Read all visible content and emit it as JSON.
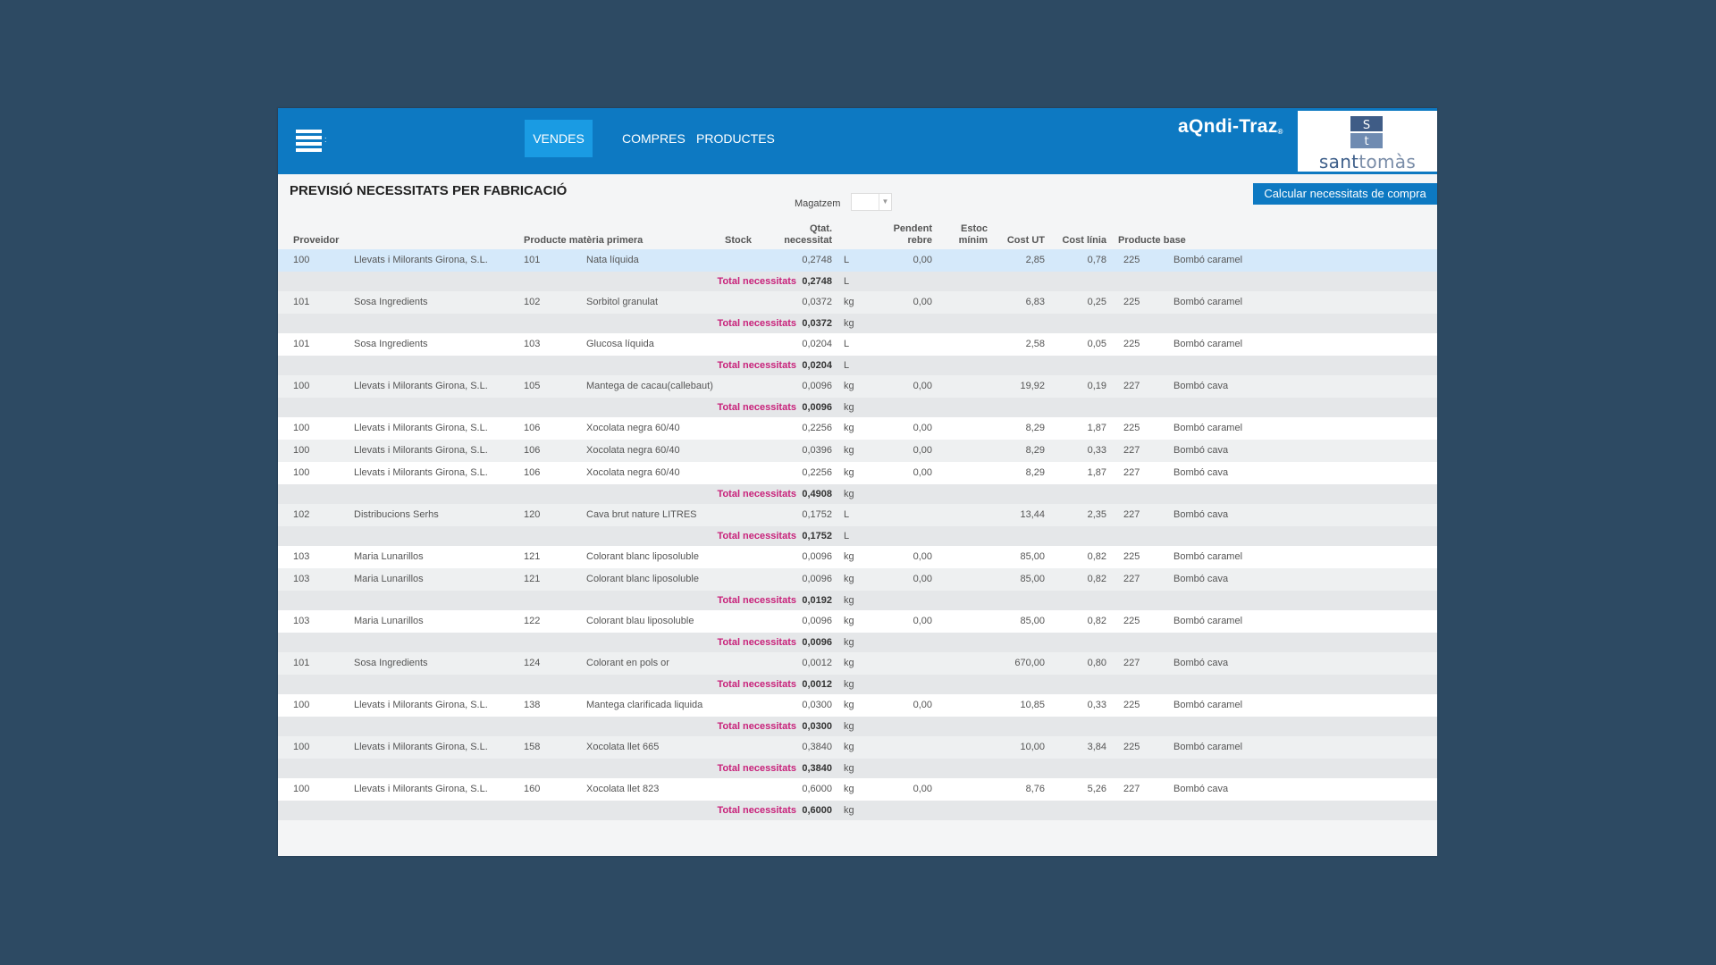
{
  "menu": {
    "icon": "menu-icon"
  },
  "nav": {
    "tabs": [
      {
        "label": "VENDES",
        "active": true
      },
      {
        "label": "COMPRES",
        "active": false
      },
      {
        "label": "PRODUCTES",
        "active": false
      }
    ]
  },
  "brand": {
    "name": "aQndi-Traz",
    "reg_mark": "®"
  },
  "logo": {
    "letter_top": "S",
    "letter_bottom": "t",
    "text_a": "sant",
    "text_b": "tomàs"
  },
  "page": {
    "title": "PREVISIÓ NECESSITATS PER FABRICACIÓ"
  },
  "filters": {
    "warehouse_label": "Magatzem",
    "warehouse_value": ""
  },
  "actions": {
    "calc_label": "Calcular necessitats de compra"
  },
  "colors": {
    "header_blue": "#0d79c2",
    "active_tab": "#1a9be3",
    "total_pink": "#c8217a",
    "selected_row": "#d5e9fa"
  },
  "table": {
    "columns": {
      "provider": "Proveidor",
      "product": "Producte matèria primera",
      "stock": "Stock",
      "qty_line1": "Qtat.",
      "qty_line2": "necessitat",
      "pending_line1": "Pendent",
      "pending_line2": "rebre",
      "minstock_line1": "Estoc",
      "minstock_line2": "mínim",
      "unit_cost": "Cost UT",
      "line_cost": "Cost línia",
      "base_product": "Producte base"
    },
    "total_label": "Total necessitats",
    "groups": [
      {
        "rows": [
          {
            "prov_code": "100",
            "prov_name": "Llevats i Milorants Girona, S.L.",
            "prod_code": "101",
            "prod_name": "Nata líquida",
            "qty": "0,2748",
            "unit": "L",
            "pending": "0,00",
            "unit_cost": "2,85",
            "line_cost": "0,78",
            "base_code": "225",
            "base_name": "Bombó caramel"
          }
        ],
        "total_qty": "0,2748",
        "total_unit": "L"
      },
      {
        "rows": [
          {
            "prov_code": "101",
            "prov_name": "Sosa Ingredients",
            "prod_code": "102",
            "prod_name": "Sorbitol granulat",
            "qty": "0,0372",
            "unit": "kg",
            "pending": "0,00",
            "unit_cost": "6,83",
            "line_cost": "0,25",
            "base_code": "225",
            "base_name": "Bombó caramel"
          }
        ],
        "total_qty": "0,0372",
        "total_unit": "kg"
      },
      {
        "rows": [
          {
            "prov_code": "101",
            "prov_name": "Sosa Ingredients",
            "prod_code": "103",
            "prod_name": "Glucosa líquida",
            "qty": "0,0204",
            "unit": "L",
            "pending": "",
            "unit_cost": "2,58",
            "line_cost": "0,05",
            "base_code": "225",
            "base_name": "Bombó caramel"
          }
        ],
        "total_qty": "0,0204",
        "total_unit": "L"
      },
      {
        "rows": [
          {
            "prov_code": "100",
            "prov_name": "Llevats i Milorants Girona, S.L.",
            "prod_code": "105",
            "prod_name": "Mantega de cacau(callebaut)",
            "qty": "0,0096",
            "unit": "kg",
            "pending": "0,00",
            "unit_cost": "19,92",
            "line_cost": "0,19",
            "base_code": "227",
            "base_name": "Bombó cava"
          }
        ],
        "total_qty": "0,0096",
        "total_unit": "kg"
      },
      {
        "rows": [
          {
            "prov_code": "100",
            "prov_name": "Llevats i Milorants Girona, S.L.",
            "prod_code": "106",
            "prod_name": "Xocolata negra 60/40",
            "qty": "0,2256",
            "unit": "kg",
            "pending": "0,00",
            "unit_cost": "8,29",
            "line_cost": "1,87",
            "base_code": "225",
            "base_name": "Bombó caramel"
          },
          {
            "prov_code": "100",
            "prov_name": "Llevats i Milorants Girona, S.L.",
            "prod_code": "106",
            "prod_name": "Xocolata negra 60/40",
            "qty": "0,0396",
            "unit": "kg",
            "pending": "0,00",
            "unit_cost": "8,29",
            "line_cost": "0,33",
            "base_code": "227",
            "base_name": "Bombó cava"
          },
          {
            "prov_code": "100",
            "prov_name": "Llevats i Milorants Girona, S.L.",
            "prod_code": "106",
            "prod_name": "Xocolata negra 60/40",
            "qty": "0,2256",
            "unit": "kg",
            "pending": "0,00",
            "unit_cost": "8,29",
            "line_cost": "1,87",
            "base_code": "227",
            "base_name": "Bombó cava"
          }
        ],
        "total_qty": "0,4908",
        "total_unit": "kg"
      },
      {
        "rows": [
          {
            "prov_code": "102",
            "prov_name": "Distribucions Serhs",
            "prod_code": "120",
            "prod_name": "Cava brut nature LITRES",
            "qty": "0,1752",
            "unit": "L",
            "pending": "",
            "unit_cost": "13,44",
            "line_cost": "2,35",
            "base_code": "227",
            "base_name": "Bombó cava"
          }
        ],
        "total_qty": "0,1752",
        "total_unit": "L"
      },
      {
        "rows": [
          {
            "prov_code": "103",
            "prov_name": "Maria Lunarillos",
            "prod_code": "121",
            "prod_name": "Colorant blanc liposoluble",
            "qty": "0,0096",
            "unit": "kg",
            "pending": "0,00",
            "unit_cost": "85,00",
            "line_cost": "0,82",
            "base_code": "225",
            "base_name": "Bombó caramel"
          },
          {
            "prov_code": "103",
            "prov_name": "Maria Lunarillos",
            "prod_code": "121",
            "prod_name": "Colorant blanc liposoluble",
            "qty": "0,0096",
            "unit": "kg",
            "pending": "0,00",
            "unit_cost": "85,00",
            "line_cost": "0,82",
            "base_code": "227",
            "base_name": "Bombó cava"
          }
        ],
        "total_qty": "0,0192",
        "total_unit": "kg"
      },
      {
        "rows": [
          {
            "prov_code": "103",
            "prov_name": "Maria Lunarillos",
            "prod_code": "122",
            "prod_name": "Colorant blau liposoluble",
            "qty": "0,0096",
            "unit": "kg",
            "pending": "0,00",
            "unit_cost": "85,00",
            "line_cost": "0,82",
            "base_code": "225",
            "base_name": "Bombó caramel"
          }
        ],
        "total_qty": "0,0096",
        "total_unit": "kg"
      },
      {
        "rows": [
          {
            "prov_code": "101",
            "prov_name": "Sosa Ingredients",
            "prod_code": "124",
            "prod_name": "Colorant en pols or",
            "qty": "0,0012",
            "unit": "kg",
            "pending": "",
            "unit_cost": "670,00",
            "line_cost": "0,80",
            "base_code": "227",
            "base_name": "Bombó cava"
          }
        ],
        "total_qty": "0,0012",
        "total_unit": "kg"
      },
      {
        "rows": [
          {
            "prov_code": "100",
            "prov_name": "Llevats i Milorants Girona, S.L.",
            "prod_code": "138",
            "prod_name": "Mantega clarificada liquida",
            "qty": "0,0300",
            "unit": "kg",
            "pending": "0,00",
            "unit_cost": "10,85",
            "line_cost": "0,33",
            "base_code": "225",
            "base_name": "Bombó caramel"
          }
        ],
        "total_qty": "0,0300",
        "total_unit": "kg"
      },
      {
        "rows": [
          {
            "prov_code": "100",
            "prov_name": "Llevats i Milorants Girona, S.L.",
            "prod_code": "158",
            "prod_name": "Xocolata llet 665",
            "qty": "0,3840",
            "unit": "kg",
            "pending": "",
            "unit_cost": "10,00",
            "line_cost": "3,84",
            "base_code": "225",
            "base_name": "Bombó caramel"
          }
        ],
        "total_qty": "0,3840",
        "total_unit": "kg"
      },
      {
        "rows": [
          {
            "prov_code": "100",
            "prov_name": "Llevats i Milorants Girona, S.L.",
            "prod_code": "160",
            "prod_name": "Xocolata llet 823",
            "qty": "0,6000",
            "unit": "kg",
            "pending": "0,00",
            "unit_cost": "8,76",
            "line_cost": "5,26",
            "base_code": "227",
            "base_name": "Bombó cava"
          }
        ],
        "total_qty": "0,6000",
        "total_unit": "kg"
      }
    ]
  }
}
